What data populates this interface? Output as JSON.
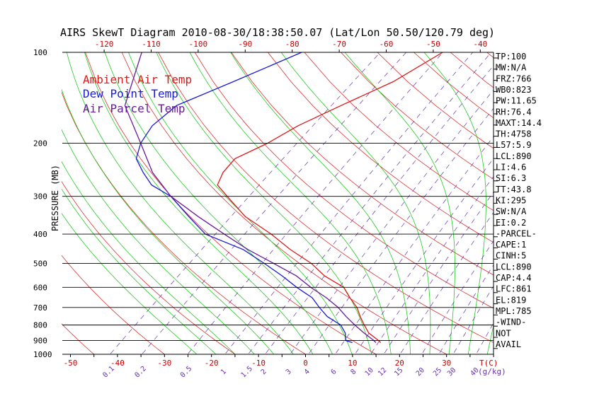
{
  "chart_data": {
    "type": "line",
    "title": "AIRS SkewT Diagram 2010-08-30/18:38:50.07 (Lat/Lon 50.50/120.79 deg)",
    "ylabel": "PRESSURE (MB)",
    "xlabel": "T(C)",
    "mixing_ratio_unit": "(g/kg)",
    "pressure_levels": [
      100,
      200,
      300,
      400,
      500,
      600,
      700,
      800,
      900,
      1000
    ],
    "pressure_tick_labels": [
      "100",
      "200",
      "300",
      "400",
      "500",
      "600",
      "700",
      "800",
      "900",
      "1000"
    ],
    "pressure_range": [
      100,
      1000
    ],
    "top_temp_labels": [
      "-120",
      "-110",
      "-100",
      "-90",
      "-80",
      "-70",
      "-60",
      "-50",
      "-40"
    ],
    "top_temp_values": [
      -120,
      -110,
      -100,
      -90,
      -80,
      -70,
      -60,
      -50,
      -40
    ],
    "bottom_temp_labels": [
      "-50",
      "-40",
      "-30",
      "-20",
      "-10",
      "0",
      "10",
      "20",
      "30"
    ],
    "bottom_temp_values": [
      -50,
      -40,
      -30,
      -20,
      -10,
      0,
      10,
      20,
      30
    ],
    "bottom_temp_range": [
      -50,
      40
    ],
    "mixing_ratio_labels": [
      "0.1",
      "0.2",
      "0.5",
      "1",
      "1.5",
      "2",
      "3",
      "4",
      "6",
      "8",
      "10",
      "12",
      "15",
      "20",
      "25",
      "30",
      "40"
    ],
    "mixing_ratio_values": [
      0.1,
      0.2,
      0.5,
      1,
      1.5,
      2,
      3,
      4,
      6,
      8,
      10,
      12,
      15,
      20,
      25,
      30,
      40
    ],
    "legend": [
      {
        "label": "Ambient Air Temp",
        "color": "#e01818"
      },
      {
        "label": "Dew Point Temp",
        "color": "#1a1ad8"
      },
      {
        "label": "Air Parcel Temp",
        "color": "#6a1a9a"
      }
    ],
    "series": [
      {
        "name": "Ambient Air Temp",
        "color": "#e01818",
        "points": [
          [
            100,
            -48
          ],
          [
            125,
            -51
          ],
          [
            150,
            -56
          ],
          [
            175,
            -60
          ],
          [
            200,
            -62
          ],
          [
            225,
            -65
          ],
          [
            250,
            -64
          ],
          [
            275,
            -62
          ],
          [
            300,
            -57
          ],
          [
            350,
            -48
          ],
          [
            400,
            -38
          ],
          [
            450,
            -30
          ],
          [
            500,
            -22
          ],
          [
            550,
            -16
          ],
          [
            600,
            -9
          ],
          [
            650,
            -5
          ],
          [
            700,
            -1
          ],
          [
            750,
            2
          ],
          [
            800,
            5
          ],
          [
            850,
            8
          ],
          [
            900,
            12
          ],
          [
            915,
            13
          ]
        ]
      },
      {
        "name": "Dew Point Temp",
        "color": "#1a1ad8",
        "points": [
          [
            100,
            -78
          ],
          [
            125,
            -85
          ],
          [
            150,
            -91
          ],
          [
            175,
            -91
          ],
          [
            200,
            -89
          ],
          [
            225,
            -86
          ],
          [
            250,
            -81
          ],
          [
            275,
            -76
          ],
          [
            300,
            -69
          ],
          [
            350,
            -60
          ],
          [
            400,
            -52
          ],
          [
            450,
            -40
          ],
          [
            500,
            -32
          ],
          [
            550,
            -25
          ],
          [
            600,
            -19
          ],
          [
            650,
            -13
          ],
          [
            700,
            -9
          ],
          [
            750,
            -5
          ],
          [
            800,
            0
          ],
          [
            850,
            3
          ],
          [
            900,
            5
          ],
          [
            915,
            7
          ]
        ]
      },
      {
        "name": "Air Parcel Temp",
        "color": "#6a1a9a",
        "points": [
          [
            100,
            -112
          ],
          [
            150,
            -102
          ],
          [
            200,
            -89
          ],
          [
            250,
            -79
          ],
          [
            300,
            -69
          ],
          [
            350,
            -58
          ],
          [
            400,
            -48
          ],
          [
            450,
            -39
          ],
          [
            500,
            -30
          ],
          [
            550,
            -22
          ],
          [
            600,
            -16
          ],
          [
            650,
            -10
          ],
          [
            700,
            -5
          ],
          [
            750,
            -1
          ],
          [
            800,
            3
          ],
          [
            850,
            7
          ],
          [
            900,
            11
          ],
          [
            915,
            12
          ]
        ]
      }
    ],
    "indices": [
      "TP:100",
      "MW:N/A",
      "FRZ:766",
      "WB0:823",
      "PW:11.65",
      "RH:76.4",
      "MAXT:14.4",
      "TH:4758",
      "L57:5.9",
      "LCL:890",
      "LI:4.6",
      "SI:6.3",
      "TT:43.8",
      "KI:295",
      "SW:N/A",
      "EI:0.2",
      "-PARCEL-",
      "CAPE:1",
      "CINH:5",
      "LCL:890",
      "CAP:4.4",
      "LFC:861",
      "EL:819",
      "MPL:785",
      "-WIND-",
      "NOT",
      "AVAIL"
    ]
  },
  "colors": {
    "axis": "#000000",
    "ambient": "#e01818",
    "dew": "#1a1ad8",
    "parcel": "#6a1a9a",
    "dry_adiabat": "#e03030",
    "moist_adiabat": "#22cc22",
    "mixing_ratio": "#6633aa",
    "top_label": "#cc0000",
    "mixing_label": "#6633aa"
  }
}
